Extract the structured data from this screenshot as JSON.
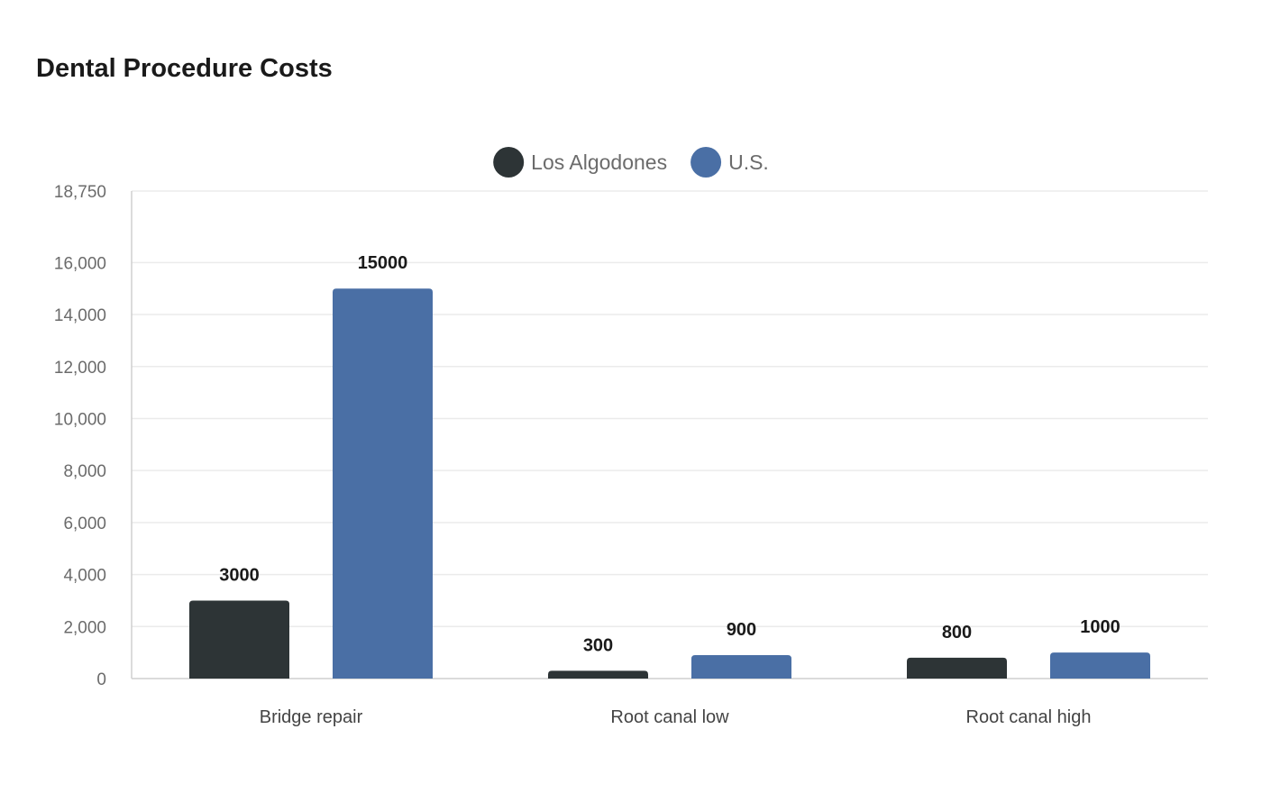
{
  "title": "Dental Procedure Costs",
  "colors": {
    "Los Algodones": "#2d3436",
    "U.S.": "#4a6fa5",
    "grid": "#ebebeb",
    "axis": "#cfcfcf"
  },
  "chart_data": {
    "type": "bar",
    "title": "Dental Procedure Costs",
    "categories": [
      "Bridge repair",
      "Root canal low",
      "Root canal high"
    ],
    "series": [
      {
        "name": "Los Algodones",
        "values": [
          3000,
          300,
          800
        ]
      },
      {
        "name": "U.S.",
        "values": [
          15000,
          900,
          1000
        ]
      }
    ],
    "yticks": [
      0,
      2000,
      4000,
      6000,
      8000,
      10000,
      12000,
      14000,
      16000,
      18750
    ],
    "ylim": [
      0,
      18750
    ],
    "legend": "top-center",
    "grid": true,
    "data_labels": true
  }
}
